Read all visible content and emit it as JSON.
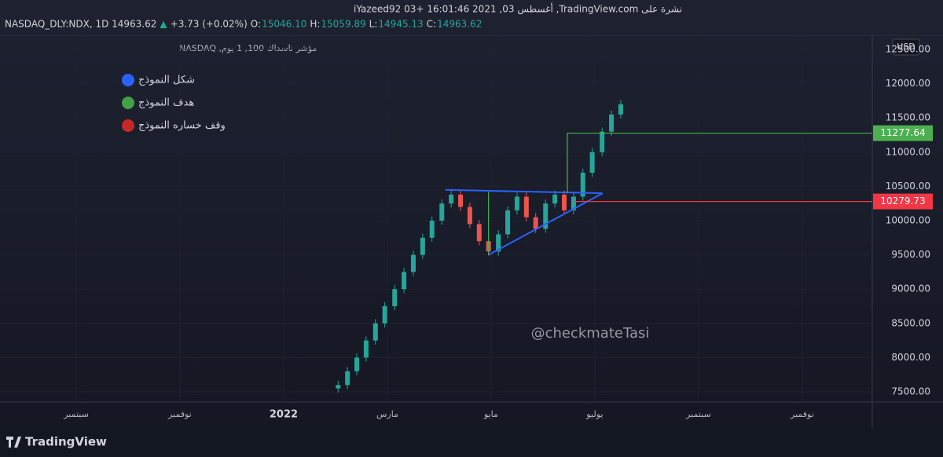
{
  "header": {
    "line1": "نشرة على TradingView.com, أغسطس 03, 2021 16:01:46 +03 iYazeed92",
    "symbol": "NASDAQ_DLY:NDX, 1D 14963.62",
    "arrow": "▲",
    "change": "+3.73 (+0.02%)",
    "o_label": "O:",
    "o": "15046.10",
    "h_label": "H:",
    "h": "15059.89",
    "l_label": "L:",
    "l": "14945.13",
    "c_label": "C:",
    "c": "14963.62"
  },
  "chart_data": {
    "type": "candlestick",
    "title": "مؤشر ناسداك 100, 1 يوم, NASDAQ",
    "currency": "USD",
    "watermark": "@checkmateTasi",
    "up_color": "#26a69a",
    "down_color": "#ef5350",
    "x": [
      5.05,
      5.23,
      5.41,
      5.59,
      5.77,
      5.95,
      6.14,
      6.32,
      6.5,
      6.68,
      6.86,
      7.05,
      7.23,
      7.41,
      7.59,
      7.77,
      7.95,
      8.14,
      8.32,
      8.5,
      8.68,
      8.86,
      9.05,
      9.23,
      9.41,
      9.59,
      9.77,
      9.95,
      10.14,
      10.32,
      10.5
    ],
    "open": [
      7550,
      7600,
      7800,
      8000,
      8250,
      8500,
      8750,
      9000,
      9250,
      9500,
      9750,
      10000,
      10250,
      10380,
      10200,
      9950,
      9700,
      9550,
      9800,
      10150,
      10350,
      10050,
      9880,
      10250,
      10380,
      10150,
      10350,
      10700,
      11000,
      11300,
      11550
    ],
    "high": [
      7660,
      7860,
      8060,
      8310,
      8560,
      8810,
      9060,
      9310,
      9560,
      9810,
      10060,
      10310,
      10440,
      10440,
      10260,
      10010,
      9760,
      9860,
      10210,
      10410,
      10410,
      10110,
      10310,
      10440,
      10440,
      10410,
      10760,
      11060,
      11360,
      11610,
      11760
    ],
    "low": [
      7490,
      7540,
      7740,
      7940,
      8190,
      8440,
      8690,
      8940,
      9190,
      9440,
      9690,
      9940,
      10190,
      10140,
      9890,
      9640,
      9490,
      9490,
      9740,
      10090,
      9990,
      9820,
      9820,
      10190,
      10090,
      10090,
      10290,
      10640,
      10940,
      11240,
      11490
    ],
    "close": [
      7600,
      7800,
      8000,
      8250,
      8500,
      8750,
      9000,
      9250,
      9500,
      9750,
      10000,
      10250,
      10380,
      10200,
      9950,
      9700,
      9550,
      9800,
      10150,
      10350,
      10050,
      9880,
      10250,
      10380,
      10150,
      10350,
      10700,
      11000,
      11300,
      11550,
      11700
    ],
    "xlim": [
      -1.47,
      15.35
    ],
    "xticks": [
      {
        "value": 0,
        "label": "سبتمبر"
      },
      {
        "value": 2,
        "label": "نوفمبر"
      },
      {
        "value": 4,
        "label": "2022"
      },
      {
        "value": 6,
        "label": "مارس"
      },
      {
        "value": 8,
        "label": "مايو"
      },
      {
        "value": 10,
        "label": "يوليو"
      },
      {
        "value": 12,
        "label": "سبتمبر"
      },
      {
        "value": 14,
        "label": "نوفمبر"
      }
    ],
    "ylim": [
      7351,
      12706
    ],
    "yticks": [
      {
        "value": 7500,
        "label": "7500.00"
      },
      {
        "value": 8000,
        "label": "8000.00"
      },
      {
        "value": 8500,
        "label": "8500.00"
      },
      {
        "value": 9000,
        "label": "9000.00"
      },
      {
        "value": 9500,
        "label": "9500.00"
      },
      {
        "value": 10000,
        "label": "10000.00"
      },
      {
        "value": 10500,
        "label": "10500.00"
      },
      {
        "value": 11000,
        "label": "11000.00"
      },
      {
        "value": 11500,
        "label": "11500.00"
      },
      {
        "value": 12000,
        "label": "12000.00"
      },
      {
        "value": 12500,
        "label": "12500.00"
      }
    ],
    "drawings": [
      {
        "color": "#2962ff",
        "x": [
          7.12,
          10.15
        ],
        "y": [
          10450,
          10400
        ]
      },
      {
        "color": "#2962ff",
        "x": [
          7.95,
          10.15
        ],
        "y": [
          9500,
          10400
        ]
      },
      {
        "color": "#4caf50",
        "x": [
          7.95,
          7.95
        ],
        "y": [
          9500,
          10420
        ]
      },
      {
        "color": "#4caf50",
        "x": [
          9.47,
          9.47,
          15.35
        ],
        "y": [
          10400,
          11277.64,
          11277.64
        ]
      },
      {
        "color": "#f23645",
        "x": [
          9.6,
          15.35
        ],
        "y": [
          10279.73,
          10279.73
        ]
      }
    ],
    "price_labels": [
      {
        "value": 11277.64,
        "color": "#4caf50"
      },
      {
        "value": 10279.73,
        "color": "#f23645"
      }
    ],
    "legend": [
      {
        "name": "شكل النموذج",
        "color": "#2962ff"
      },
      {
        "name": "هدف النموذج",
        "color": "#43a047"
      },
      {
        "name": "وقف خساره النموذج",
        "color": "#c62828"
      }
    ],
    "footer": "TradingView"
  }
}
